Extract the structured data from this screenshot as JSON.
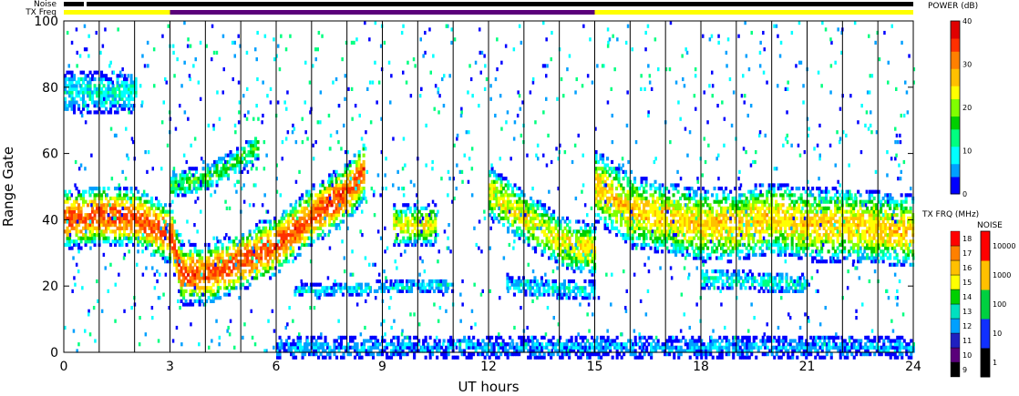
{
  "chart_data": {
    "type": "heatmap",
    "xlabel": "UT hours",
    "ylabel": "Range Gate",
    "xlim": [
      0,
      24
    ],
    "ylim": [
      0,
      100
    ],
    "xticks": [
      0,
      3,
      6,
      9,
      12,
      15,
      18,
      21,
      24
    ],
    "yticks": [
      0,
      20,
      40,
      60,
      80,
      100
    ],
    "vertical_lines_hours": [
      1,
      2,
      3,
      4,
      5,
      6,
      7,
      8,
      9,
      10,
      11,
      12,
      13,
      14,
      15,
      16,
      17,
      18,
      19,
      20,
      21,
      22,
      23
    ],
    "top_bars": {
      "noise_label": "Noise",
      "txfreq_label": "TX Freq",
      "txfreq_segments": [
        {
          "start": 0,
          "end": 3,
          "color": "#ffff00"
        },
        {
          "start": 3,
          "end": 15,
          "color": "#5a007a"
        },
        {
          "start": 15,
          "end": 24,
          "color": "#ffff00"
        }
      ]
    },
    "power_colorbar": {
      "title": "POWER (dB)",
      "min": 0,
      "max": 40,
      "ticks": [
        0,
        10,
        20,
        30,
        40
      ],
      "colors": [
        "#0000ff",
        "#00a0ff",
        "#00ffff",
        "#00ff80",
        "#00d000",
        "#80ff00",
        "#ffff00",
        "#ffc000",
        "#ff8000",
        "#ff3000",
        "#e00000"
      ]
    },
    "txfreq_colorbar": {
      "title": "TX FRQ (MHz)",
      "ticks": [
        "9",
        "10",
        "11",
        "12",
        "13",
        "14",
        "15",
        "16",
        "17",
        "18"
      ],
      "colors": [
        "#000000",
        "#5a007a",
        "#2020c0",
        "#00a0ff",
        "#00e0c0",
        "#00d000",
        "#ffff00",
        "#ffc000",
        "#ff8000",
        "#ff0000"
      ]
    },
    "noise_colorbar": {
      "title": "NOISE",
      "ticks": [
        "1",
        "10",
        "100",
        "1000",
        "10000"
      ],
      "colors": [
        "#000000",
        "#1030ff",
        "#00d040",
        "#ffc000",
        "#ff0000"
      ]
    },
    "echo_bands": [
      {
        "name": "main",
        "pts": [
          [
            0,
            40
          ],
          [
            0.5,
            40
          ],
          [
            1,
            41
          ],
          [
            2,
            40
          ],
          [
            3,
            35
          ],
          [
            3.3,
            23
          ],
          [
            4,
            23
          ],
          [
            5,
            27
          ],
          [
            6,
            32
          ],
          [
            7,
            41
          ],
          [
            8,
            48
          ],
          [
            8.5,
            55
          ]
        ],
        "w": 9,
        "pmax": 33
      },
      {
        "name": "patch9",
        "pts": [
          [
            9.3,
            38
          ],
          [
            10.5,
            38
          ]
        ],
        "w": 6,
        "pmax": 24
      },
      {
        "name": "midday",
        "pts": [
          [
            12,
            48
          ],
          [
            13,
            40
          ],
          [
            14,
            33
          ],
          [
            15,
            30
          ]
        ],
        "w": 8,
        "pmax": 24
      },
      {
        "name": "evening",
        "pts": [
          [
            15,
            50
          ],
          [
            16,
            42
          ],
          [
            17,
            40
          ],
          [
            18,
            38
          ],
          [
            19,
            38
          ],
          [
            20,
            40
          ],
          [
            21,
            38
          ],
          [
            22,
            38
          ],
          [
            23,
            37
          ],
          [
            24,
            36
          ]
        ],
        "w": 11,
        "pmax": 26
      },
      {
        "name": "upper3",
        "pts": [
          [
            3,
            50
          ],
          [
            4,
            52
          ],
          [
            5,
            58
          ],
          [
            5.5,
            62
          ]
        ],
        "w": 4,
        "pmax": 16
      },
      {
        "name": "upper0",
        "pts": [
          [
            0,
            78
          ],
          [
            2,
            78
          ]
        ],
        "w": 6,
        "pmax": 10
      },
      {
        "name": "low7",
        "pts": [
          [
            6.5,
            18
          ],
          [
            11,
            20
          ]
        ],
        "w": 2,
        "pmax": 8
      },
      {
        "name": "low13",
        "pts": [
          [
            12.5,
            20
          ],
          [
            15,
            18
          ]
        ],
        "w": 3,
        "pmax": 8
      },
      {
        "name": "low19",
        "pts": [
          [
            18,
            22
          ],
          [
            21,
            20
          ]
        ],
        "w": 3,
        "pmax": 10
      },
      {
        "name": "ground",
        "pts": [
          [
            6,
            1
          ],
          [
            24,
            1
          ]
        ],
        "w": 3,
        "pmax": 6
      }
    ]
  }
}
